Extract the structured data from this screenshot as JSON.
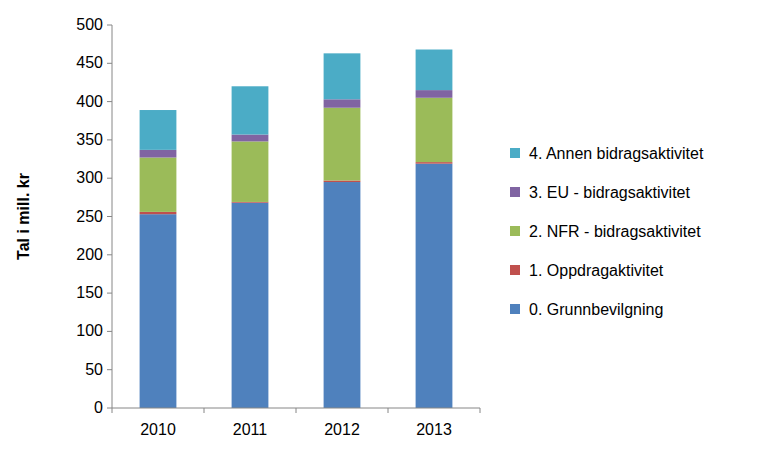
{
  "chart_data": {
    "type": "bar",
    "stacked": true,
    "grid": false,
    "legend": "right",
    "y_label": "Tal i mill. kr",
    "categories": [
      "2010",
      "2011",
      "2012",
      "2013"
    ],
    "series": [
      {
        "name": "0. Grunnbevilgning",
        "color": "#4f81bd",
        "values": [
          253,
          268,
          295,
          319
        ]
      },
      {
        "name": "1. Oppdragaktivitet",
        "color": "#c0504d",
        "values": [
          3,
          1,
          2,
          2
        ]
      },
      {
        "name": "2. NFR - bidragsaktivitet",
        "color": "#9bbb59",
        "values": [
          71,
          79,
          95,
          84
        ]
      },
      {
        "name": "3. EU - bidragsaktivitet",
        "color": "#8064a2",
        "values": [
          10,
          9,
          11,
          10
        ]
      },
      {
        "name": "4. Annen bidragsaktivitet",
        "color": "#4bacc6",
        "values": [
          52,
          63,
          60,
          53
        ]
      }
    ],
    "ylim": [
      0,
      500
    ],
    "yticks": [
      0,
      50,
      100,
      150,
      200,
      250,
      300,
      350,
      400,
      450,
      500
    ]
  }
}
